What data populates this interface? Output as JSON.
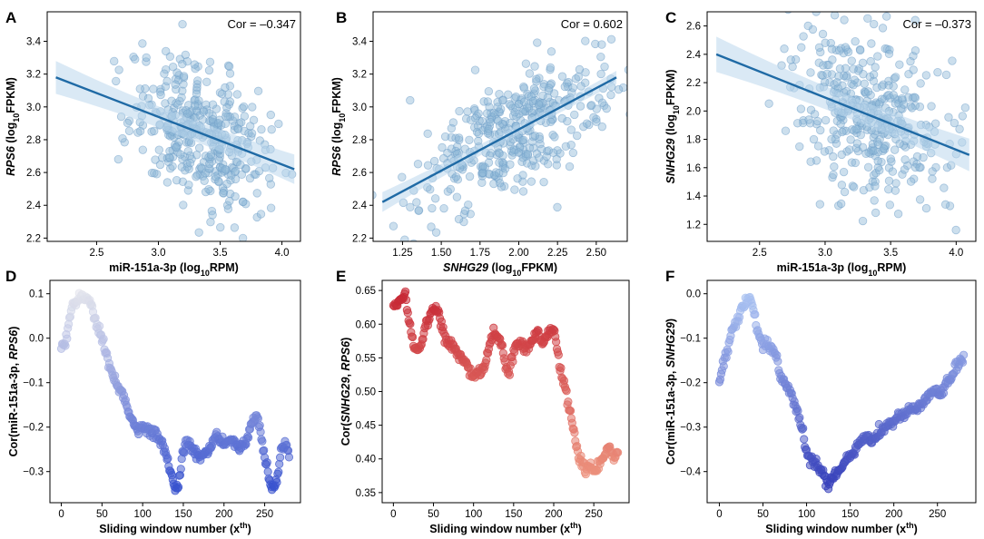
{
  "figure": {
    "panels": [
      {
        "letter": "A",
        "cor_text": "Cor = –0.347",
        "xlabel_parts": [
          {
            "text": "miR-151a-3p (log",
            "style": "normal"
          },
          {
            "text": "10",
            "style": "sub"
          },
          {
            "text": "RPM)",
            "style": "normal"
          }
        ],
        "ylabel_parts": [
          {
            "text": "RPS6",
            "style": "italic"
          },
          {
            "text": " (log",
            "style": "normal"
          },
          {
            "text": "10",
            "style": "sub"
          },
          {
            "text": "FPKM)",
            "style": "normal"
          }
        ]
      },
      {
        "letter": "B",
        "cor_text": "Cor = 0.602",
        "xlabel_parts": [
          {
            "text": "SNHG29",
            "style": "italic"
          },
          {
            "text": " (log",
            "style": "normal"
          },
          {
            "text": "10",
            "style": "sub"
          },
          {
            "text": "FPKM)",
            "style": "normal"
          }
        ],
        "ylabel_parts": [
          {
            "text": "RPS6",
            "style": "italic"
          },
          {
            "text": " (log",
            "style": "normal"
          },
          {
            "text": "10",
            "style": "sub"
          },
          {
            "text": "FPKM)",
            "style": "normal"
          }
        ]
      },
      {
        "letter": "C",
        "cor_text": "Cor = –0.373",
        "xlabel_parts": [
          {
            "text": "miR-151a-3p (log",
            "style": "normal"
          },
          {
            "text": "10",
            "style": "sub"
          },
          {
            "text": "RPM)",
            "style": "normal"
          }
        ],
        "ylabel_parts": [
          {
            "text": "SNHG29",
            "style": "italic"
          },
          {
            "text": " (log",
            "style": "normal"
          },
          {
            "text": "10",
            "style": "sub"
          },
          {
            "text": "FPKM)",
            "style": "normal"
          }
        ]
      },
      {
        "letter": "D",
        "xlabel_parts": [
          {
            "text": "Sliding window number (x",
            "style": "normal"
          },
          {
            "text": "th",
            "style": "sup"
          },
          {
            "text": ")",
            "style": "normal"
          }
        ],
        "ylabel_parts": [
          {
            "text": "Cor(miR-151a-3p, ",
            "style": "normal"
          },
          {
            "text": "RPS6",
            "style": "italic"
          },
          {
            "text": ")",
            "style": "normal"
          }
        ]
      },
      {
        "letter": "E",
        "xlabel_parts": [
          {
            "text": "Sliding window number (x",
            "style": "normal"
          },
          {
            "text": "th",
            "style": "sup"
          },
          {
            "text": ")",
            "style": "normal"
          }
        ],
        "ylabel_parts": [
          {
            "text": "Cor(",
            "style": "normal"
          },
          {
            "text": "SNHG29",
            "style": "italic"
          },
          {
            "text": ", ",
            "style": "normal"
          },
          {
            "text": "RPS6",
            "style": "italic"
          },
          {
            "text": ")",
            "style": "normal"
          }
        ]
      },
      {
        "letter": "F",
        "xlabel_parts": [
          {
            "text": "Sliding window number (x",
            "style": "normal"
          },
          {
            "text": "th",
            "style": "sup"
          },
          {
            "text": ")",
            "style": "normal"
          }
        ],
        "ylabel_parts": [
          {
            "text": "Cor(miR-151a-3p, ",
            "style": "normal"
          },
          {
            "text": "SNHG29",
            "style": "italic"
          },
          {
            "text": ")",
            "style": "normal"
          }
        ]
      }
    ]
  },
  "chart_data": [
    {
      "panel": "A",
      "type": "scatter",
      "title": "",
      "correlation": -0.347,
      "xlabel": "miR-151a-3p (log10RPM)",
      "ylabel": "RPS6 (log10FPKM)",
      "xlim": [
        2.1,
        4.15
      ],
      "ylim": [
        2.18,
        3.58
      ],
      "xticks": [
        2.5,
        3.0,
        3.5,
        4.0
      ],
      "xtick_labels": [
        "2.5",
        "3.0",
        "3.5",
        "4.0"
      ],
      "yticks": [
        2.2,
        2.4,
        2.6,
        2.8,
        3.0,
        3.2,
        3.4
      ],
      "ytick_labels": [
        "2.2",
        "2.4",
        "2.6",
        "2.8",
        "3.0",
        "3.2",
        "3.4"
      ],
      "n_points": 400,
      "x_mean": 3.35,
      "x_sd": 0.28,
      "y_mean": 2.84,
      "y_sd": 0.22,
      "regression_line": {
        "x": [
          2.17,
          4.1
        ],
        "y": [
          3.18,
          2.62
        ]
      },
      "ci_band": {
        "lower_at_xmin": 3.08,
        "upper_at_xmin": 3.28,
        "lower_at_xmax": 2.53,
        "upper_at_xmax": 2.71
      },
      "point_color": "#8fb7d8",
      "line_color": "#1f6aa5",
      "band_color": "#bcd7ec",
      "grid": false
    },
    {
      "panel": "B",
      "type": "scatter",
      "title": "",
      "correlation": 0.602,
      "xlabel": "SNHG29 (log10FPKM)",
      "ylabel": "RPS6 (log10FPKM)",
      "xlim": [
        1.06,
        2.7
      ],
      "ylim": [
        2.18,
        3.58
      ],
      "xticks": [
        1.25,
        1.5,
        1.75,
        2.0,
        2.25,
        2.5
      ],
      "xtick_labels": [
        "1.25",
        "1.50",
        "1.75",
        "2.00",
        "2.25",
        "2.50"
      ],
      "yticks": [
        2.2,
        2.4,
        2.6,
        2.8,
        3.0,
        3.2,
        3.4
      ],
      "ytick_labels": [
        "2.2",
        "2.4",
        "2.6",
        "2.8",
        "3.0",
        "3.2",
        "3.4"
      ],
      "n_points": 400,
      "x_mean": 1.97,
      "x_sd": 0.29,
      "y_mean": 2.84,
      "y_sd": 0.22,
      "regression_line": {
        "x": [
          1.12,
          2.63
        ],
        "y": [
          2.42,
          3.18
        ]
      },
      "ci_band": {
        "lower_at_xmin": 2.36,
        "upper_at_xmin": 2.48,
        "lower_at_xmax": 3.14,
        "upper_at_xmax": 3.22
      },
      "point_color": "#8fb7d8",
      "line_color": "#1f6aa5",
      "band_color": "#bcd7ec",
      "grid": false
    },
    {
      "panel": "C",
      "type": "scatter",
      "title": "",
      "correlation": -0.373,
      "xlabel": "miR-151a-3p (log10RPM)",
      "ylabel": "SNHG29 (log10FPKM)",
      "xlim": [
        2.1,
        4.15
      ],
      "ylim": [
        1.08,
        2.7
      ],
      "xticks": [
        2.5,
        3.0,
        3.5,
        4.0
      ],
      "xtick_labels": [
        "2.5",
        "3.0",
        "3.5",
        "4.0"
      ],
      "yticks": [
        1.2,
        1.4,
        1.6,
        1.8,
        2.0,
        2.2,
        2.4,
        2.6
      ],
      "ytick_labels": [
        "1.2",
        "1.4",
        "1.6",
        "1.8",
        "2.0",
        "2.2",
        "2.4",
        "2.6"
      ],
      "n_points": 400,
      "x_mean": 3.35,
      "x_sd": 0.28,
      "y_mean": 1.97,
      "y_sd": 0.29,
      "regression_line": {
        "x": [
          2.17,
          4.1
        ],
        "y": [
          2.4,
          1.69
        ]
      },
      "ci_band": {
        "lower_at_xmin": 2.28,
        "upper_at_xmin": 2.53,
        "lower_at_xmax": 1.58,
        "upper_at_xmax": 1.81
      },
      "point_color": "#8fb7d8",
      "line_color": "#1f6aa5",
      "band_color": "#bcd7ec",
      "grid": false
    },
    {
      "panel": "D",
      "type": "scatter",
      "title": "",
      "xlabel": "Sliding window number (xth)",
      "ylabel": "Cor(miR-151a-3p, RPS6)",
      "xlim": [
        -14,
        294
      ],
      "ylim": [
        -0.37,
        0.13
      ],
      "xticks": [
        0,
        50,
        100,
        150,
        200,
        250
      ],
      "xtick_labels": [
        "0",
        "50",
        "100",
        "150",
        "200",
        "250"
      ],
      "yticks": [
        -0.3,
        -0.2,
        -0.1,
        0.0,
        0.1
      ],
      "ytick_labels": [
        "−0.3",
        "−0.2",
        "−0.1",
        "0.0",
        "0.1"
      ],
      "n_points": 281,
      "curve_keypoints": [
        [
          0,
          -0.02
        ],
        [
          5,
          -0.01
        ],
        [
          10,
          0.05
        ],
        [
          15,
          0.08
        ],
        [
          20,
          0.09
        ],
        [
          25,
          0.1
        ],
        [
          30,
          0.09
        ],
        [
          35,
          0.08
        ],
        [
          40,
          0.05
        ],
        [
          45,
          0.02
        ],
        [
          50,
          0.0
        ],
        [
          55,
          -0.03
        ],
        [
          60,
          -0.07
        ],
        [
          65,
          -0.09
        ],
        [
          70,
          -0.11
        ],
        [
          75,
          -0.13
        ],
        [
          80,
          -0.15
        ],
        [
          85,
          -0.18
        ],
        [
          90,
          -0.19
        ],
        [
          95,
          -0.2
        ],
        [
          100,
          -0.2
        ],
        [
          110,
          -0.21
        ],
        [
          120,
          -0.22
        ],
        [
          125,
          -0.24
        ],
        [
          130,
          -0.27
        ],
        [
          135,
          -0.3
        ],
        [
          140,
          -0.34
        ],
        [
          145,
          -0.32
        ],
        [
          150,
          -0.25
        ],
        [
          155,
          -0.23
        ],
        [
          160,
          -0.25
        ],
        [
          170,
          -0.27
        ],
        [
          180,
          -0.25
        ],
        [
          190,
          -0.22
        ],
        [
          200,
          -0.24
        ],
        [
          210,
          -0.23
        ],
        [
          220,
          -0.25
        ],
        [
          230,
          -0.22
        ],
        [
          235,
          -0.19
        ],
        [
          240,
          -0.17
        ],
        [
          245,
          -0.22
        ],
        [
          250,
          -0.26
        ],
        [
          255,
          -0.31
        ],
        [
          260,
          -0.34
        ],
        [
          265,
          -0.32
        ],
        [
          270,
          -0.25
        ],
        [
          275,
          -0.24
        ],
        [
          280,
          -0.26
        ]
      ],
      "colormap": {
        "low": "#2b47cc",
        "high": "#eeeeee"
      },
      "grid": false
    },
    {
      "panel": "E",
      "type": "scatter",
      "title": "",
      "xlabel": "Sliding window number (xth)",
      "ylabel": "Cor(SNHG29, RPS6)",
      "xlim": [
        -14,
        294
      ],
      "ylim": [
        0.335,
        0.665
      ],
      "xticks": [
        0,
        50,
        100,
        150,
        200,
        250
      ],
      "xtick_labels": [
        "0",
        "50",
        "100",
        "150",
        "200",
        "250"
      ],
      "yticks": [
        0.35,
        0.4,
        0.45,
        0.5,
        0.55,
        0.6,
        0.65
      ],
      "ytick_labels": [
        "0.35",
        "0.40",
        "0.45",
        "0.50",
        "0.55",
        "0.60",
        "0.65"
      ],
      "n_points": 281,
      "curve_keypoints": [
        [
          0,
          0.625
        ],
        [
          5,
          0.63
        ],
        [
          10,
          0.64
        ],
        [
          15,
          0.645
        ],
        [
          20,
          0.6
        ],
        [
          25,
          0.57
        ],
        [
          30,
          0.56
        ],
        [
          35,
          0.57
        ],
        [
          40,
          0.6
        ],
        [
          45,
          0.61
        ],
        [
          50,
          0.62
        ],
        [
          55,
          0.625
        ],
        [
          60,
          0.6
        ],
        [
          65,
          0.58
        ],
        [
          70,
          0.57
        ],
        [
          75,
          0.565
        ],
        [
          80,
          0.56
        ],
        [
          85,
          0.55
        ],
        [
          90,
          0.54
        ],
        [
          95,
          0.53
        ],
        [
          100,
          0.52
        ],
        [
          105,
          0.53
        ],
        [
          110,
          0.53
        ],
        [
          115,
          0.54
        ],
        [
          120,
          0.57
        ],
        [
          125,
          0.59
        ],
        [
          130,
          0.58
        ],
        [
          135,
          0.57
        ],
        [
          140,
          0.54
        ],
        [
          145,
          0.53
        ],
        [
          150,
          0.56
        ],
        [
          155,
          0.57
        ],
        [
          160,
          0.57
        ],
        [
          165,
          0.56
        ],
        [
          170,
          0.57
        ],
        [
          175,
          0.58
        ],
        [
          180,
          0.59
        ],
        [
          185,
          0.57
        ],
        [
          190,
          0.58
        ],
        [
          195,
          0.59
        ],
        [
          200,
          0.595
        ],
        [
          205,
          0.56
        ],
        [
          210,
          0.52
        ],
        [
          215,
          0.5
        ],
        [
          220,
          0.47
        ],
        [
          225,
          0.44
        ],
        [
          230,
          0.41
        ],
        [
          235,
          0.39
        ],
        [
          240,
          0.38
        ],
        [
          245,
          0.39
        ],
        [
          250,
          0.38
        ],
        [
          255,
          0.39
        ],
        [
          260,
          0.4
        ],
        [
          265,
          0.41
        ],
        [
          270,
          0.42
        ],
        [
          275,
          0.4
        ],
        [
          280,
          0.41
        ]
      ],
      "colormap": {
        "low": "#f2a288",
        "high": "#c4202f"
      },
      "grid": false
    },
    {
      "panel": "F",
      "type": "scatter",
      "title": "",
      "xlabel": "Sliding window number (xth)",
      "ylabel": "Cor(miR-151a-3p, SNHG29)",
      "xlim": [
        -14,
        294
      ],
      "ylim": [
        -0.47,
        0.03
      ],
      "xticks": [
        0,
        50,
        100,
        150,
        200,
        250
      ],
      "xtick_labels": [
        "0",
        "50",
        "100",
        "150",
        "200",
        "250"
      ],
      "yticks": [
        -0.4,
        -0.3,
        -0.2,
        -0.1,
        0.0
      ],
      "ytick_labels": [
        "−0.4",
        "−0.3",
        "−0.2",
        "−0.1",
        "0.0"
      ],
      "n_points": 281,
      "curve_keypoints": [
        [
          0,
          -0.2
        ],
        [
          5,
          -0.15
        ],
        [
          10,
          -0.12
        ],
        [
          15,
          -0.08
        ],
        [
          20,
          -0.06
        ],
        [
          25,
          -0.04
        ],
        [
          30,
          -0.02
        ],
        [
          35,
          -0.01
        ],
        [
          40,
          -0.04
        ],
        [
          45,
          -0.1
        ],
        [
          50,
          -0.11
        ],
        [
          55,
          -0.11
        ],
        [
          60,
          -0.12
        ],
        [
          65,
          -0.14
        ],
        [
          70,
          -0.19
        ],
        [
          75,
          -0.2
        ],
        [
          80,
          -0.22
        ],
        [
          85,
          -0.24
        ],
        [
          90,
          -0.27
        ],
        [
          95,
          -0.3
        ],
        [
          100,
          -0.36
        ],
        [
          105,
          -0.37
        ],
        [
          110,
          -0.38
        ],
        [
          115,
          -0.4
        ],
        [
          120,
          -0.41
        ],
        [
          125,
          -0.43
        ],
        [
          130,
          -0.41
        ],
        [
          135,
          -0.4
        ],
        [
          140,
          -0.39
        ],
        [
          145,
          -0.38
        ],
        [
          150,
          -0.36
        ],
        [
          155,
          -0.35
        ],
        [
          160,
          -0.34
        ],
        [
          165,
          -0.33
        ],
        [
          170,
          -0.32
        ],
        [
          175,
          -0.33
        ],
        [
          180,
          -0.32
        ],
        [
          185,
          -0.31
        ],
        [
          190,
          -0.3
        ],
        [
          195,
          -0.29
        ],
        [
          200,
          -0.29
        ],
        [
          205,
          -0.28
        ],
        [
          210,
          -0.27
        ],
        [
          215,
          -0.27
        ],
        [
          220,
          -0.26
        ],
        [
          225,
          -0.26
        ],
        [
          230,
          -0.25
        ],
        [
          235,
          -0.24
        ],
        [
          240,
          -0.23
        ],
        [
          245,
          -0.22
        ],
        [
          250,
          -0.22
        ],
        [
          255,
          -0.22
        ],
        [
          260,
          -0.2
        ],
        [
          265,
          -0.19
        ],
        [
          270,
          -0.17
        ],
        [
          275,
          -0.15
        ],
        [
          280,
          -0.15
        ]
      ],
      "colormap": {
        "low": "#2b33b5",
        "high": "#b3cdf6"
      },
      "grid": false
    }
  ]
}
